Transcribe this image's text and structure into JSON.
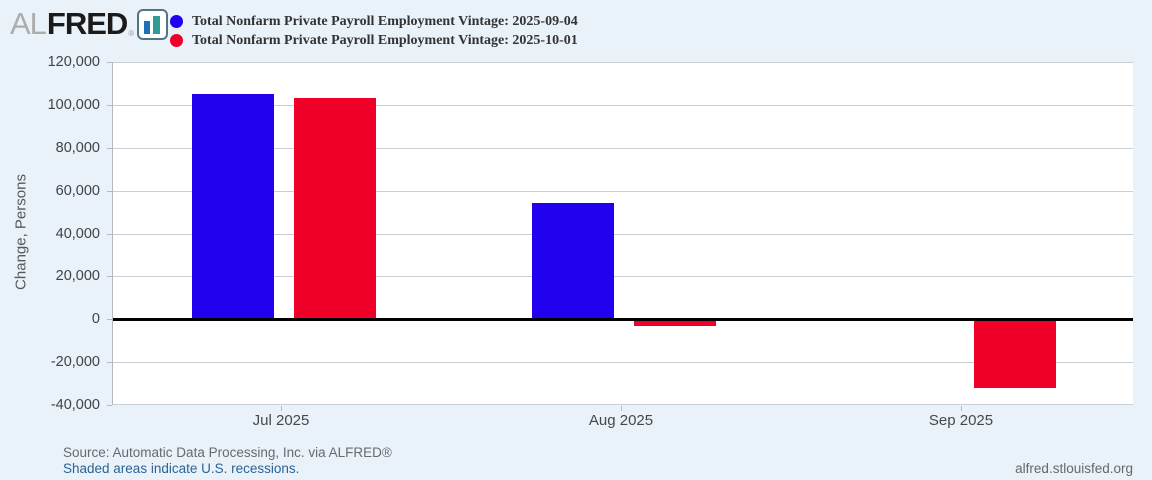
{
  "header": {
    "logo": {
      "al": "AL",
      "fred": "FRED",
      "registered": "®"
    },
    "legend": [
      {
        "label": "Total Nonfarm Private Payroll Employment Vintage: 2025-09-04",
        "color": "#2201EE"
      },
      {
        "label": "Total Nonfarm Private Payroll Employment Vintage: 2025-10-01",
        "color": "#EE0029"
      }
    ]
  },
  "chart_data": {
    "type": "bar",
    "title": "",
    "ylabel": "Change, Persons",
    "xlabel": "",
    "categories": [
      "Jul 2025",
      "Aug 2025",
      "Sep 2025"
    ],
    "series": [
      {
        "name": "Total Nonfarm Private Payroll Employment Vintage: 2025-09-04",
        "color": "#2201EE",
        "values": [
          105000,
          54000,
          null
        ]
      },
      {
        "name": "Total Nonfarm Private Payroll Employment Vintage: 2025-10-01",
        "color": "#EE0029",
        "values": [
          103000,
          -3000,
          -32000
        ]
      }
    ],
    "ylim": [
      -40000,
      120000
    ],
    "yticks": [
      {
        "v": 120000,
        "label": "120,000"
      },
      {
        "v": 100000,
        "label": "100,000"
      },
      {
        "v": 80000,
        "label": "80,000"
      },
      {
        "v": 60000,
        "label": "60,000"
      },
      {
        "v": 40000,
        "label": "40,000"
      },
      {
        "v": 20000,
        "label": "20,000"
      },
      {
        "v": 0,
        "label": "0"
      },
      {
        "v": -20000,
        "label": "-20,000"
      },
      {
        "v": -40000,
        "label": "-40,000"
      }
    ],
    "grid": true,
    "legend_position": "top",
    "zero_line_color": "#000000",
    "plot_background": "#FFFFFF",
    "page_background": "#E9F1F9"
  },
  "footer": {
    "source": "Source: Automatic Data Processing, Inc. via ALFRED®",
    "recessions_note": "Shaded areas indicate U.S. recessions.",
    "site": "alfred.stlouisfed.org"
  }
}
